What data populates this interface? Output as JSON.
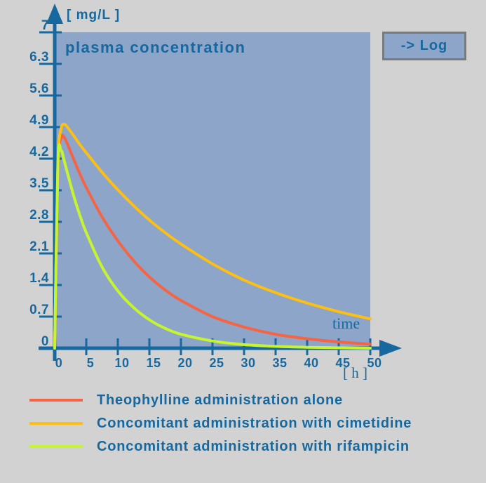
{
  "log_button": {
    "label": "-> Log"
  },
  "colors": {
    "background": "#D2D2D2",
    "plot_background": "#8CA5C9",
    "axis": "#16689E",
    "text": "#16689E",
    "button_border": "#7A7A7A"
  },
  "chart_data": {
    "type": "line",
    "title": "plasma concentration",
    "ylabel": "[ mg/L ]",
    "xlabel": "[ h ]",
    "x_axis_name": "time",
    "xlim": [
      0,
      50
    ],
    "ylim": [
      0,
      7
    ],
    "x_ticks": [
      0,
      5,
      10,
      15,
      20,
      25,
      30,
      35,
      40,
      45,
      50
    ],
    "y_ticks": [
      0,
      0.7,
      1.4,
      2.1,
      2.8,
      3.5,
      4.2,
      4.9,
      5.6,
      6.3,
      7
    ],
    "grid": false,
    "legend_position": "bottom",
    "x": [
      0,
      0.5,
      1,
      1.5,
      2,
      3,
      4,
      5,
      7.5,
      10,
      12.5,
      15,
      17.5,
      20,
      25,
      30,
      35,
      40,
      45,
      50
    ],
    "series": [
      {
        "name": "Theophylline administration alone",
        "color": "#F66444",
        "values": [
          0,
          3.94,
          4.66,
          4.67,
          4.53,
          4.19,
          3.86,
          3.56,
          2.91,
          2.38,
          1.94,
          1.58,
          1.29,
          1.06,
          0.7,
          0.47,
          0.31,
          0.21,
          0.14,
          0.09
        ]
      },
      {
        "name": "Concomitant administration with cimetidine",
        "color": "#FCBF14",
        "values": [
          0,
          4.04,
          4.85,
          4.96,
          4.9,
          4.71,
          4.51,
          4.33,
          3.9,
          3.51,
          3.16,
          2.84,
          2.56,
          2.31,
          1.87,
          1.51,
          1.23,
          1.0,
          0.81,
          0.65
        ]
      },
      {
        "name": "Concomitant administration with rifampicin",
        "color": "#C6F530",
        "values": [
          0,
          4.1,
          4.38,
          4.16,
          3.89,
          3.38,
          2.94,
          2.56,
          1.8,
          1.27,
          0.9,
          0.63,
          0.44,
          0.31,
          0.16,
          0.08,
          0.04,
          0.02,
          0.01,
          0.0
        ]
      }
    ]
  }
}
